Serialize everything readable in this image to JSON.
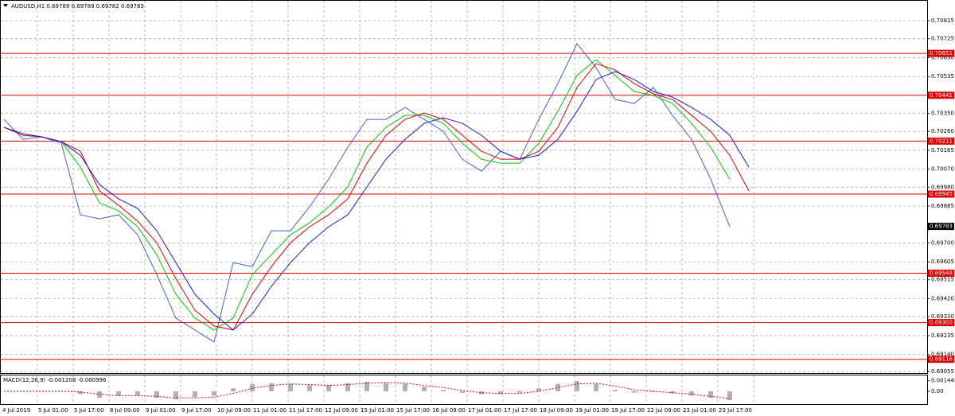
{
  "chart_data": {
    "type": "line",
    "title": "AUDUSD,H1  0.69789 0.69789 0.69782 0.69783",
    "x_labels": [
      "4 Jul 2019",
      "5 Jul 01:00",
      "5 Jul 17:00",
      "8 Jul 09:00",
      "9 Jul 01:00",
      "9 Jul 17:00",
      "10 Jul 09:00",
      "11 Jul 01:00",
      "11 Jul 17:00",
      "12 Jul 09:00",
      "15 Jul 01:00",
      "15 Jul 17:00",
      "16 Jul 09:00",
      "17 Jul 01:00",
      "17 Jul 17:00",
      "18 Jul 09:00",
      "19 Jul 01:00",
      "19 Jul 17:00",
      "22 Jul 09:00",
      "23 Jul 01:00",
      "23 Jul 17:00"
    ],
    "ylim": [
      0.69043,
      0.70919
    ],
    "yticks": [
      0.70815,
      0.70725,
      {
        "value": 0.7063,
        "label": "0.70630"
      },
      0.70535,
      {
        "value": 0.7035,
        "label": "0.70350"
      },
      {
        "value": 0.7026,
        "label": "0.70260"
      },
      0.70165,
      {
        "value": 0.7007,
        "label": "0.70070"
      },
      {
        "value": 0.6998,
        "label": "0.69980"
      },
      0.69885,
      {
        "value": 0.697,
        "label": "0.69700"
      },
      0.69605,
      0.69515,
      {
        "value": 0.6942,
        "label": "0.69420"
      },
      {
        "value": 0.6933,
        "label": "0.69330"
      },
      0.69235,
      {
        "value": 0.6914,
        "label": "0.69140"
      },
      0.69055
    ],
    "grid": true,
    "series": [
      {
        "color": "#3d62d6",
        "values": [
          0.7032,
          0.7022,
          0.70232,
          0.702,
          0.69841,
          0.69821,
          0.69841,
          0.69741,
          0.69541,
          0.69323,
          0.69263,
          0.69203,
          0.69601,
          0.69581,
          0.69761,
          0.69761,
          0.69881,
          0.7002,
          0.7018,
          0.7032,
          0.7032,
          0.7038,
          0.7032,
          0.7026,
          0.7012,
          0.7006,
          0.7016,
          0.7012,
          0.7032,
          0.705,
          0.707,
          0.7058,
          0.7042,
          0.704,
          0.7048,
          0.7034,
          0.7022,
          0.7002,
          0.69781,
          null
        ]
      },
      {
        "color": "#00c800",
        "values": [
          0.7028,
          0.7024,
          0.70232,
          0.70208,
          0.7008,
          0.69901,
          0.69861,
          0.69781,
          0.69641,
          0.69442,
          0.69323,
          0.69263,
          0.69323,
          0.69541,
          0.69641,
          0.69741,
          0.69801,
          0.69881,
          0.69981,
          0.7018,
          0.7028,
          0.7034,
          0.7034,
          0.703,
          0.702,
          0.7012,
          0.701,
          0.701,
          0.702,
          0.7036,
          0.7054,
          0.7062,
          0.7054,
          0.7046,
          0.7044,
          0.704,
          0.703,
          0.7018,
          0.7002,
          null
        ]
      },
      {
        "color": "#e00000",
        "values": [
          0.7028,
          0.7024,
          0.70232,
          0.70208,
          0.7016,
          0.69961,
          0.69889,
          0.69809,
          0.69701,
          0.69521,
          0.69362,
          0.69283,
          0.69263,
          0.69442,
          0.69581,
          0.69701,
          0.69781,
          0.69841,
          0.69921,
          0.701,
          0.7024,
          0.7032,
          0.70352,
          0.7032,
          0.7024,
          0.7016,
          0.7012,
          0.7012,
          0.7016,
          0.7028,
          0.7048,
          0.706,
          0.70568,
          0.705,
          0.70448,
          0.7042,
          0.7034,
          0.7026,
          0.7014,
          0.69961
        ]
      },
      {
        "color": "#1a1ae0",
        "values": [
          0.7028,
          0.70248,
          0.70232,
          0.70208,
          0.7014,
          0.69993,
          0.69921,
          0.69873,
          0.69761,
          0.69601,
          0.69442,
          0.69343,
          0.69263,
          0.69343,
          0.69482,
          0.69601,
          0.69701,
          0.69781,
          0.69841,
          0.69981,
          0.7012,
          0.7022,
          0.703,
          0.70328,
          0.703,
          0.7024,
          0.7016,
          0.7012,
          0.7014,
          0.7022,
          0.7036,
          0.7052,
          0.7056,
          0.7052,
          0.7046,
          0.70432,
          0.7038,
          0.7032,
          0.7024,
          0.7008
        ]
      }
    ],
    "levels": [
      0.70651,
      0.70441,
      0.70211,
      0.69945,
      0.69548,
      {
        "value": 0.693,
        "label": "0.69300"
      },
      0.69116
    ],
    "level_color": "#e00000",
    "last_price": 0.69783,
    "macd": {
      "label": "MACD(12,26,9) -0.001208 -0.000996",
      "ylim": [
        -0.00175,
        0.00216
      ],
      "yticks": [
        0.001443,
        {
          "value": 0,
          "label": "0.00"
        }
      ],
      "histogram": {
        "color": "#b0b0b0",
        "values": [
          0,
          0,
          0,
          0,
          -0.0004,
          -0.0009,
          -0.0006,
          -0.0006,
          -0.0009,
          -0.0011,
          -0.0008,
          -0.0006,
          0.0004,
          0.001,
          0.0011,
          0.001,
          0.0008,
          0.0008,
          0.0011,
          0.0013,
          0.0011,
          0.001,
          0.0006,
          0.0002,
          -0.0002,
          -0.0004,
          -0.0004,
          -0.0002,
          0.0004,
          0.001,
          0.0014,
          0.001,
          0.0002,
          -0.0002,
          -0.0001,
          -0.0003,
          -0.0006,
          -0.0009,
          -0.0012,
          null
        ]
      },
      "signal": {
        "color": "#e00000",
        "values": [
          0,
          0,
          0,
          0,
          -0.0001,
          -0.0004,
          -0.0006,
          -0.0006,
          -0.0007,
          -0.0009,
          -0.0009,
          -0.0008,
          -0.0003,
          0.0004,
          0.0008,
          0.001,
          0.0009,
          0.0008,
          0.0009,
          0.0011,
          0.0012,
          0.0011,
          0.0008,
          0.0005,
          0.0001,
          -0.0002,
          -0.0003,
          -0.0003,
          0,
          0.0005,
          0.001,
          0.0011,
          0.0007,
          0.0002,
          0,
          -0.0002,
          -0.0004,
          -0.0007,
          -0.001,
          null
        ]
      }
    }
  }
}
